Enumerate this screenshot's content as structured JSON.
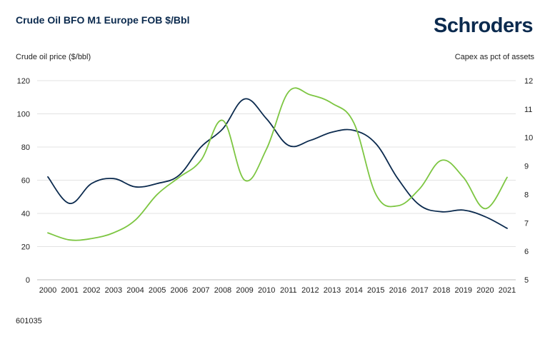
{
  "header": {
    "title": "Crude Oil BFO M1 Europe FOB $/Bbl",
    "brand": "Schroders"
  },
  "footer": {
    "code": "601035"
  },
  "colors": {
    "oil": "#0b2a4e",
    "capex": "#7dc642",
    "grid": "#e3e3e3",
    "title": "#0b2a4e"
  },
  "chart_data": {
    "type": "line",
    "title": "Crude Oil BFO M1 Europe FOB $/Bbl",
    "ylabel": "Crude oil price ($/bbl)",
    "y2label": "Capex as pct of assets",
    "x": [
      "2000",
      "2001",
      "2002",
      "2003",
      "2004",
      "2005",
      "2006",
      "2007",
      "2008",
      "2009",
      "2010",
      "2011",
      "2012",
      "2013",
      "2014",
      "2015",
      "2016",
      "2017",
      "2018",
      "2019",
      "2020",
      "2021"
    ],
    "ylim": [
      0,
      120
    ],
    "yticks": [
      0,
      20,
      40,
      60,
      80,
      100,
      120
    ],
    "y2lim": [
      5,
      12
    ],
    "y2ticks": [
      5,
      6,
      7,
      8,
      9,
      10,
      11,
      12
    ],
    "grid": true,
    "series": [
      {
        "name": "",
        "axis": "left",
        "color": "#0b2a4e",
        "values": [
          62,
          46,
          58,
          61,
          56,
          58,
          63,
          80,
          91,
          109,
          97,
          81,
          84,
          89,
          90,
          82,
          61,
          45,
          41,
          42,
          38,
          31
        ]
      },
      {
        "name": "",
        "axis": "right",
        "color": "#7dc642",
        "values": [
          6.65,
          6.4,
          6.45,
          6.65,
          7.1,
          8.0,
          8.6,
          9.2,
          10.6,
          8.5,
          9.6,
          11.6,
          11.5,
          11.2,
          10.5,
          8.0,
          7.6,
          8.2,
          9.2,
          8.6,
          7.5,
          8.6
        ]
      }
    ]
  }
}
